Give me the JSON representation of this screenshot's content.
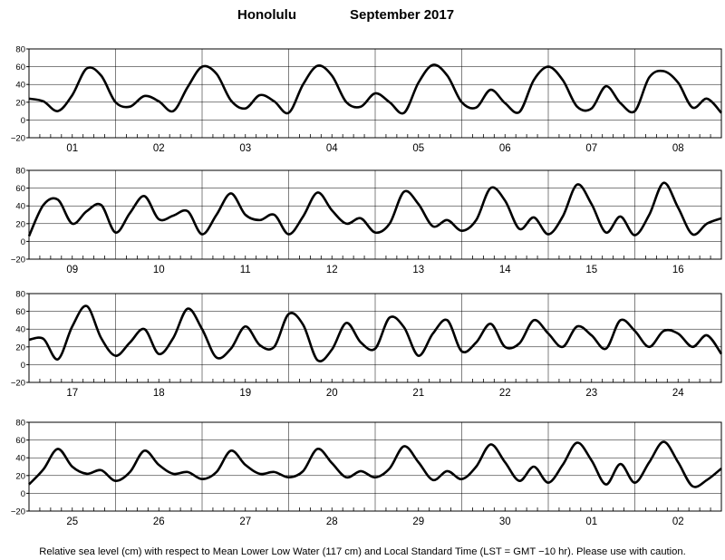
{
  "chart_data": {
    "type": "line",
    "title_location": "Honolulu",
    "title_period": "September   2017",
    "ylim": [
      -20,
      80
    ],
    "yticks": [
      "80",
      "60",
      "40",
      "20",
      "0",
      "−20"
    ],
    "grid": true,
    "footnote": "Relative sea level (cm) with respect to Mean Lower Low Water (117 cm) and Local Standard Time (LST = GMT −10 hr). Please use with caution.",
    "line_color": "#000000",
    "panels": [
      {
        "days": [
          "01",
          "02",
          "03",
          "04",
          "05",
          "06",
          "07",
          "08"
        ],
        "x": [
          0,
          4,
          8,
          12,
          16,
          20,
          24,
          28,
          32,
          36,
          40,
          44,
          48,
          52,
          56,
          60,
          64,
          68,
          72,
          76,
          80,
          84,
          88,
          92,
          96,
          100,
          104,
          108,
          112,
          116,
          120,
          124,
          128,
          132,
          136,
          140,
          144,
          148,
          152,
          156,
          160,
          164,
          168,
          172,
          176,
          180,
          184,
          188,
          192
        ],
        "y": [
          24,
          21,
          10,
          28,
          58,
          50,
          20,
          15,
          27,
          21,
          10,
          37,
          60,
          52,
          22,
          13,
          28,
          21,
          8,
          40,
          61,
          50,
          20,
          15,
          30,
          20,
          8,
          42,
          62,
          50,
          20,
          14,
          34,
          19,
          9,
          45,
          60,
          45,
          15,
          13,
          38,
          19,
          10,
          48,
          55,
          42,
          14,
          24,
          8
        ]
      },
      {
        "days": [
          "09",
          "10",
          "11",
          "12",
          "13",
          "14",
          "15",
          "16"
        ],
        "x": [
          0,
          4,
          8,
          12,
          16,
          20,
          24,
          28,
          32,
          36,
          40,
          44,
          48,
          52,
          56,
          60,
          64,
          68,
          72,
          76,
          80,
          84,
          88,
          92,
          96,
          100,
          104,
          108,
          112,
          116,
          120,
          124,
          128,
          132,
          136,
          140,
          144,
          148,
          152,
          156,
          160,
          164,
          168,
          172,
          176,
          180,
          184,
          188,
          192
        ],
        "y": [
          6,
          41,
          47,
          20,
          34,
          41,
          10,
          32,
          51,
          25,
          29,
          34,
          8,
          30,
          54,
          30,
          24,
          30,
          8,
          28,
          55,
          35,
          20,
          26,
          10,
          20,
          56,
          42,
          17,
          24,
          12,
          24,
          60,
          46,
          14,
          27,
          8,
          28,
          64,
          42,
          10,
          28,
          7,
          30,
          66,
          38,
          8,
          20,
          26
        ]
      },
      {
        "days": [
          "17",
          "18",
          "19",
          "20",
          "21",
          "22",
          "23",
          "24"
        ],
        "x": [
          0,
          4,
          8,
          12,
          16,
          20,
          24,
          28,
          32,
          36,
          40,
          44,
          48,
          52,
          56,
          60,
          64,
          68,
          72,
          76,
          80,
          84,
          88,
          92,
          96,
          100,
          104,
          108,
          112,
          116,
          120,
          124,
          128,
          132,
          136,
          140,
          144,
          148,
          152,
          156,
          160,
          164,
          168,
          172,
          176,
          180,
          184,
          188,
          192
        ],
        "y": [
          28,
          29,
          6,
          43,
          66,
          30,
          10,
          25,
          40,
          12,
          30,
          63,
          40,
          8,
          18,
          43,
          22,
          20,
          57,
          45,
          5,
          17,
          47,
          25,
          18,
          53,
          42,
          10,
          35,
          50,
          15,
          25,
          46,
          20,
          24,
          50,
          35,
          20,
          43,
          33,
          18,
          50,
          38,
          20,
          38,
          35,
          20,
          33,
          12
        ]
      },
      {
        "days": [
          "25",
          "26",
          "27",
          "28",
          "29",
          "30",
          "01",
          "02"
        ],
        "x": [
          0,
          4,
          8,
          12,
          16,
          20,
          24,
          28,
          32,
          36,
          40,
          44,
          48,
          52,
          56,
          60,
          64,
          68,
          72,
          76,
          80,
          84,
          88,
          92,
          96,
          100,
          104,
          108,
          112,
          116,
          120,
          124,
          128,
          132,
          136,
          140,
          144,
          148,
          152,
          156,
          160,
          164,
          168,
          172,
          176,
          180,
          184,
          188,
          192
        ],
        "y": [
          10,
          27,
          50,
          30,
          22,
          26,
          14,
          24,
          48,
          32,
          22,
          24,
          16,
          24,
          48,
          32,
          22,
          24,
          18,
          25,
          50,
          34,
          18,
          25,
          18,
          28,
          53,
          35,
          15,
          25,
          16,
          30,
          55,
          35,
          14,
          30,
          12,
          32,
          57,
          37,
          10,
          33,
          12,
          35,
          58,
          35,
          8,
          15,
          28
        ]
      }
    ]
  }
}
